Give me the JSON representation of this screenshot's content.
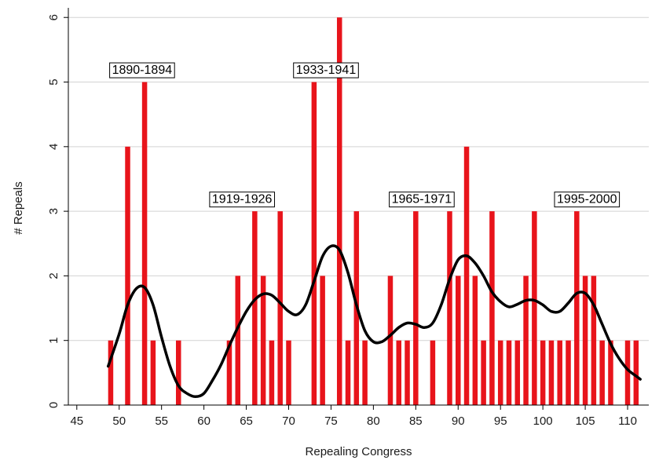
{
  "chart_data": {
    "type": "bar",
    "title": "",
    "xlabel": "Repealing Congress",
    "ylabel": "# Repeals",
    "xlim": [
      44,
      112.5
    ],
    "ylim": [
      0,
      6.1
    ],
    "xticks": [
      45,
      50,
      55,
      60,
      65,
      70,
      75,
      80,
      85,
      90,
      95,
      100,
      105,
      110
    ],
    "yticks": [
      0,
      1,
      2,
      3,
      4,
      5,
      6
    ],
    "grid": "horizontal",
    "colors": {
      "bars": "#e8141b",
      "smooth_line": "#000000",
      "grid": "#d3d3d3"
    },
    "bars": [
      {
        "x": 49,
        "y": 1
      },
      {
        "x": 51,
        "y": 4
      },
      {
        "x": 53,
        "y": 5
      },
      {
        "x": 54,
        "y": 1
      },
      {
        "x": 57,
        "y": 1
      },
      {
        "x": 63,
        "y": 1
      },
      {
        "x": 64,
        "y": 2
      },
      {
        "x": 66,
        "y": 3
      },
      {
        "x": 67,
        "y": 2
      },
      {
        "x": 68,
        "y": 1
      },
      {
        "x": 69,
        "y": 3
      },
      {
        "x": 70,
        "y": 1
      },
      {
        "x": 73,
        "y": 5
      },
      {
        "x": 74,
        "y": 2
      },
      {
        "x": 76,
        "y": 6
      },
      {
        "x": 77,
        "y": 1
      },
      {
        "x": 78,
        "y": 3
      },
      {
        "x": 79,
        "y": 1
      },
      {
        "x": 82,
        "y": 2
      },
      {
        "x": 83,
        "y": 1
      },
      {
        "x": 84,
        "y": 1
      },
      {
        "x": 85,
        "y": 3
      },
      {
        "x": 87,
        "y": 1
      },
      {
        "x": 89,
        "y": 3
      },
      {
        "x": 90,
        "y": 2
      },
      {
        "x": 91,
        "y": 4
      },
      {
        "x": 92,
        "y": 2
      },
      {
        "x": 93,
        "y": 1
      },
      {
        "x": 94,
        "y": 3
      },
      {
        "x": 95,
        "y": 1
      },
      {
        "x": 96,
        "y": 1
      },
      {
        "x": 97,
        "y": 1
      },
      {
        "x": 98,
        "y": 2
      },
      {
        "x": 99,
        "y": 3
      },
      {
        "x": 100,
        "y": 1
      },
      {
        "x": 101,
        "y": 1
      },
      {
        "x": 102,
        "y": 1
      },
      {
        "x": 103,
        "y": 1
      },
      {
        "x": 104,
        "y": 3
      },
      {
        "x": 105,
        "y": 2
      },
      {
        "x": 106,
        "y": 2
      },
      {
        "x": 107,
        "y": 1
      },
      {
        "x": 108,
        "y": 1
      },
      {
        "x": 110,
        "y": 1
      },
      {
        "x": 111,
        "y": 1
      }
    ],
    "smooth_line": [
      [
        48.7,
        0.6
      ],
      [
        50,
        1.1
      ],
      [
        51,
        1.55
      ],
      [
        52,
        1.8
      ],
      [
        53,
        1.82
      ],
      [
        54,
        1.55
      ],
      [
        55,
        1.05
      ],
      [
        56,
        0.6
      ],
      [
        57,
        0.3
      ],
      [
        58,
        0.18
      ],
      [
        59,
        0.13
      ],
      [
        60,
        0.18
      ],
      [
        61,
        0.38
      ],
      [
        62,
        0.62
      ],
      [
        63,
        0.92
      ],
      [
        64,
        1.2
      ],
      [
        65,
        1.45
      ],
      [
        66,
        1.63
      ],
      [
        67,
        1.72
      ],
      [
        68,
        1.7
      ],
      [
        69,
        1.58
      ],
      [
        70,
        1.45
      ],
      [
        71,
        1.4
      ],
      [
        72,
        1.55
      ],
      [
        73,
        1.92
      ],
      [
        74,
        2.3
      ],
      [
        75,
        2.46
      ],
      [
        76,
        2.4
      ],
      [
        77,
        2.05
      ],
      [
        78,
        1.55
      ],
      [
        79,
        1.15
      ],
      [
        80,
        0.98
      ],
      [
        81,
        0.98
      ],
      [
        82,
        1.08
      ],
      [
        83,
        1.2
      ],
      [
        84,
        1.27
      ],
      [
        85,
        1.25
      ],
      [
        86,
        1.2
      ],
      [
        87,
        1.27
      ],
      [
        88,
        1.55
      ],
      [
        89,
        1.95
      ],
      [
        90,
        2.25
      ],
      [
        91,
        2.31
      ],
      [
        92,
        2.2
      ],
      [
        93,
        2.0
      ],
      [
        94,
        1.75
      ],
      [
        95,
        1.6
      ],
      [
        96,
        1.52
      ],
      [
        97,
        1.56
      ],
      [
        98,
        1.62
      ],
      [
        99,
        1.62
      ],
      [
        100,
        1.55
      ],
      [
        101,
        1.45
      ],
      [
        102,
        1.45
      ],
      [
        103,
        1.58
      ],
      [
        104,
        1.73
      ],
      [
        105,
        1.73
      ],
      [
        106,
        1.55
      ],
      [
        107,
        1.25
      ],
      [
        108,
        0.95
      ],
      [
        109,
        0.72
      ],
      [
        110,
        0.55
      ],
      [
        111,
        0.45
      ],
      [
        111.5,
        0.4
      ]
    ],
    "annotations": [
      {
        "label": "1890-1894",
        "x": 52.7,
        "y": 5.2
      },
      {
        "label": "1933-1941",
        "x": 74.4,
        "y": 5.2
      },
      {
        "label": "1919-1926",
        "x": 64.5,
        "y": 3.2
      },
      {
        "label": "1965-1971",
        "x": 85.7,
        "y": 3.2
      },
      {
        "label": "1995-2000",
        "x": 105.2,
        "y": 3.2
      }
    ]
  }
}
